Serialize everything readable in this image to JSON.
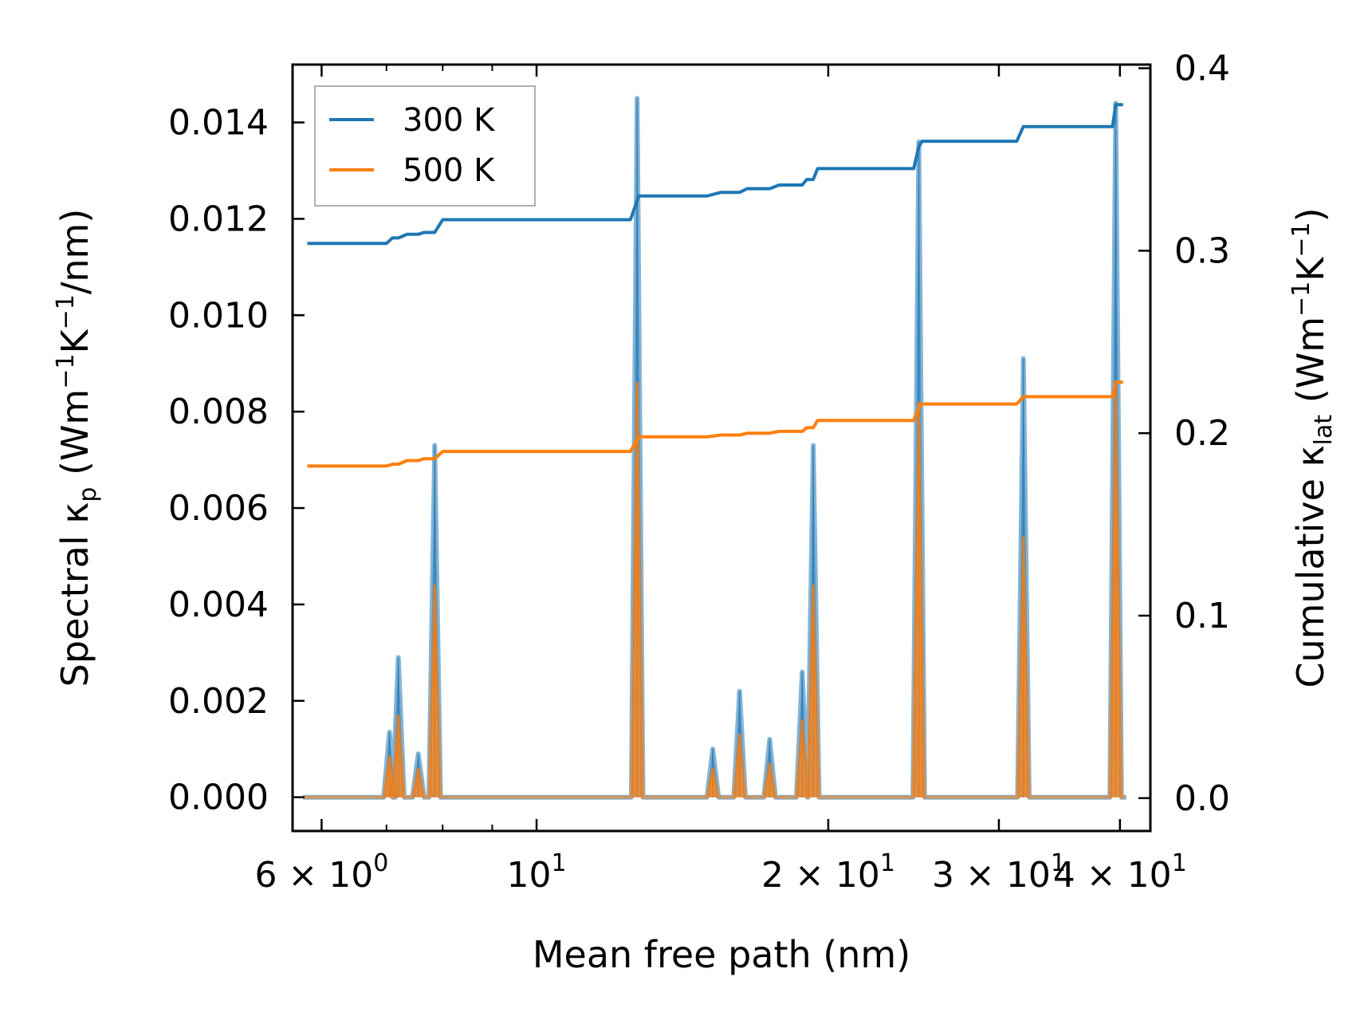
{
  "chart_data": {
    "type": "line",
    "xlabel": "Mean free path (nm)",
    "ylabel_left": {
      "pre": "Spectral κ",
      "sub": "p",
      "post1": " (Wm",
      "sup1": "−1",
      "post2": "K",
      "sup2": "−1",
      "post3": "/nm)"
    },
    "ylabel_right": {
      "pre": "Cumulative κ",
      "sub": "lat",
      "post1": " (Wm",
      "sup1": "−1",
      "post2": "K",
      "sup2": "−1",
      "post3": ")"
    },
    "xscale": "log",
    "xlim": [
      5.6,
      43.0
    ],
    "ylim_left": [
      -0.0007,
      0.0152
    ],
    "ylim_right": [
      -0.018,
      0.402
    ],
    "x_ticks": [
      {
        "value": 6,
        "mantissa": "6",
        "times": "×",
        "base": "10",
        "exp": "0"
      },
      {
        "value": 10,
        "mantissa": "",
        "times": "",
        "base": "10",
        "exp": "1"
      },
      {
        "value": 20,
        "mantissa": "2",
        "times": "×",
        "base": "10",
        "exp": "1"
      },
      {
        "value": 30,
        "mantissa": "3",
        "times": "×",
        "base": "10",
        "exp": "1"
      },
      {
        "value": 40,
        "mantissa": "4",
        "times": "×",
        "base": "10",
        "exp": "1"
      }
    ],
    "x_minor_ticks": [
      7,
      8,
      9
    ],
    "y_left_ticks": [
      "0.000",
      "0.002",
      "0.004",
      "0.006",
      "0.008",
      "0.010",
      "0.012",
      "0.014"
    ],
    "y_right_ticks": [
      "0.0",
      "0.1",
      "0.2",
      "0.3",
      "0.4"
    ],
    "legend": {
      "position": "top-left",
      "entries": [
        "300 K",
        "500 K"
      ]
    },
    "colors": {
      "s300": "#1f77b4",
      "s500": "#ff7f0e"
    },
    "spectral_peaks": [
      {
        "x": 7.05,
        "y300": 0.00135,
        "y500": 0.00085
      },
      {
        "x": 7.2,
        "y300": 0.0029,
        "y500": 0.0017
      },
      {
        "x": 7.55,
        "y300": 0.0009,
        "y500": 0.0006
      },
      {
        "x": 7.85,
        "y300": 0.0073,
        "y500": 0.0044
      },
      {
        "x": 12.7,
        "y300": 0.0145,
        "y500": 0.0086
      },
      {
        "x": 15.2,
        "y300": 0.001,
        "y500": 0.0006
      },
      {
        "x": 16.2,
        "y300": 0.0022,
        "y500": 0.0013
      },
      {
        "x": 17.4,
        "y300": 0.0012,
        "y500": 0.0007
      },
      {
        "x": 18.8,
        "y300": 0.0026,
        "y500": 0.0016
      },
      {
        "x": 19.3,
        "y300": 0.0073,
        "y500": 0.0044
      },
      {
        "x": 24.8,
        "y300": 0.0136,
        "y500": 0.0082
      },
      {
        "x": 31.8,
        "y300": 0.0091,
        "y500": 0.0054
      },
      {
        "x": 39.6,
        "y300": 0.0144,
        "y500": 0.0086
      }
    ],
    "series": [
      {
        "name": "300 K",
        "axis": "right",
        "x": [
          5.8,
          7.0,
          7.1,
          7.2,
          7.35,
          7.55,
          7.65,
          7.85,
          8.0,
          12.5,
          12.75,
          15.0,
          15.5,
          16.2,
          16.5,
          17.4,
          17.8,
          18.8,
          19.0,
          19.3,
          19.5,
          24.5,
          24.8,
          25.0,
          31.3,
          31.8,
          32.0,
          39.3,
          39.6,
          40.3
        ],
        "y": [
          0.304,
          0.304,
          0.307,
          0.307,
          0.309,
          0.309,
          0.31,
          0.31,
          0.317,
          0.317,
          0.33,
          0.33,
          0.332,
          0.332,
          0.334,
          0.334,
          0.336,
          0.336,
          0.339,
          0.339,
          0.345,
          0.345,
          0.357,
          0.36,
          0.36,
          0.368,
          0.368,
          0.368,
          0.38,
          0.38
        ]
      },
      {
        "name": "500 K",
        "axis": "right",
        "x": [
          5.8,
          7.0,
          7.1,
          7.2,
          7.35,
          7.55,
          7.65,
          7.85,
          8.0,
          12.5,
          12.75,
          15.0,
          15.5,
          16.2,
          16.5,
          17.4,
          17.8,
          18.8,
          19.0,
          19.3,
          19.5,
          24.5,
          24.8,
          25.0,
          31.3,
          31.8,
          32.0,
          39.3,
          39.6,
          40.3
        ],
        "y": [
          0.182,
          0.182,
          0.183,
          0.183,
          0.185,
          0.185,
          0.186,
          0.186,
          0.19,
          0.19,
          0.198,
          0.198,
          0.199,
          0.199,
          0.2,
          0.2,
          0.201,
          0.201,
          0.203,
          0.203,
          0.207,
          0.207,
          0.214,
          0.216,
          0.216,
          0.22,
          0.22,
          0.22,
          0.228,
          0.228
        ]
      }
    ]
  }
}
